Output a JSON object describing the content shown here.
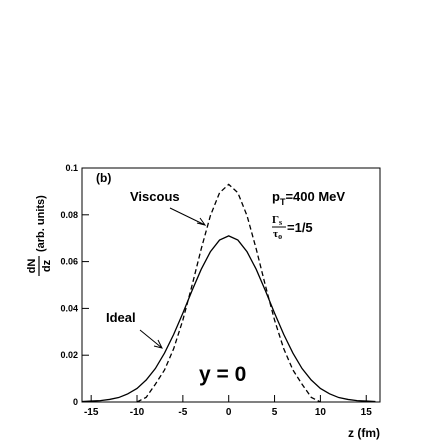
{
  "chart_data": {
    "type": "line",
    "panel_label": "(b)",
    "y_label_numerator": "dN",
    "y_label_denominator": "dz",
    "y_label_units": "(arb. units)",
    "x_label": "z (fm)",
    "x": [
      -16,
      -15,
      -14,
      -13,
      -12,
      -11,
      -10,
      -9,
      -8,
      -7,
      -6,
      -5,
      -4,
      -3,
      -2,
      -1,
      0,
      1,
      2,
      3,
      4,
      5,
      6,
      7,
      8,
      9,
      10,
      11,
      12,
      13,
      14,
      15,
      16
    ],
    "series": [
      {
        "name": "Ideal",
        "color": "#000000",
        "dash": false,
        "values": [
          0.0002,
          0.0004,
          0.0006,
          0.0011,
          0.0019,
          0.0035,
          0.0058,
          0.0094,
          0.0143,
          0.0209,
          0.0289,
          0.038,
          0.0476,
          0.0567,
          0.0642,
          0.0692,
          0.071,
          0.0692,
          0.0642,
          0.0567,
          0.0476,
          0.038,
          0.0289,
          0.0209,
          0.0143,
          0.0094,
          0.0058,
          0.0035,
          0.0019,
          0.0011,
          0.0006,
          0.0004,
          0.0002
        ]
      },
      {
        "name": "Viscous",
        "color": "#000000",
        "dash": true,
        "values": [
          null,
          null,
          null,
          null,
          null,
          null,
          0,
          0.002,
          0.0076,
          0.0137,
          0.0228,
          0.035,
          0.0498,
          0.0654,
          0.0796,
          0.0894,
          0.093,
          0.0894,
          0.0796,
          0.0654,
          0.0498,
          0.035,
          0.0228,
          0.0137,
          0.0076,
          0.002,
          0,
          null,
          null,
          null,
          null,
          null,
          null
        ]
      }
    ],
    "pt_main": "p",
    "pt_sub": "T",
    "pt_rest": "=400 MeV",
    "ratio_num": "Γ",
    "ratio_num_sub": "s",
    "ratio_den": "τ",
    "ratio_den_sub": "o",
    "ratio_rest": "=1/5",
    "rapidity_label": "y = 0",
    "xlim": [
      -16,
      16.5
    ],
    "xticks": [
      -15,
      -10,
      -5,
      0,
      5,
      10,
      15
    ],
    "ylim": [
      0,
      0.1
    ],
    "yticks": [
      0,
      0.02,
      0.04,
      0.06,
      0.08,
      0.1
    ]
  }
}
